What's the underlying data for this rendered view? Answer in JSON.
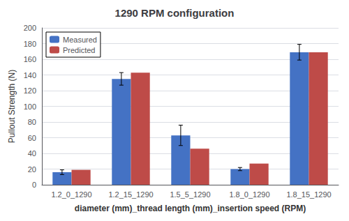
{
  "chart_data": {
    "type": "bar",
    "title": "1290 RPM configuration",
    "xlabel": "diameter (mm)_thread length (mm)_insertion speed (RPM)",
    "ylabel": "Pullout Strength (N)",
    "categories": [
      "1.2_0_1290",
      "1.2_15_1290",
      "1.5_5_1290",
      "1.8_0_1290",
      "1.8_15_1290"
    ],
    "series": [
      {
        "name": "Measured",
        "color": "#4472C4",
        "values": [
          16,
          135,
          63,
          20,
          169
        ],
        "errors": [
          3,
          8,
          13,
          2,
          10
        ]
      },
      {
        "name": "Predicted",
        "color": "#BE4B48",
        "values": [
          19,
          143,
          46,
          27,
          169
        ]
      }
    ],
    "ylim": [
      0,
      200
    ],
    "yticks": [
      0,
      20,
      40,
      60,
      80,
      100,
      120,
      140,
      160,
      180,
      200
    ],
    "grid": true,
    "legend": "upper left"
  }
}
